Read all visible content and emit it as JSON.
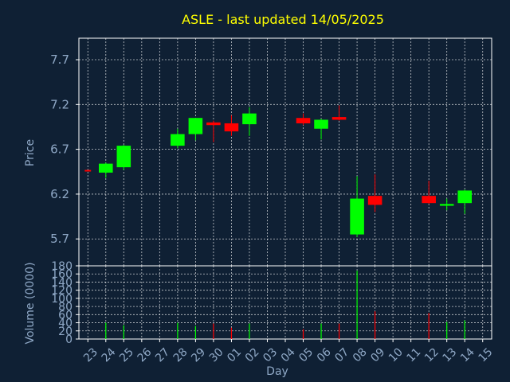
{
  "title": "ASLE - last updated 14/05/2025",
  "chart_data": [
    {
      "type": "candlestick",
      "ylabel": "Price",
      "xlabel": "",
      "ylim": [
        5.4,
        7.94
      ],
      "y_ticks": [
        "5.7",
        "6.2",
        "6.7",
        "7.2",
        "7.7"
      ],
      "grid": true,
      "colors": {
        "up": "#00ff00",
        "down": "#ff0000"
      },
      "categories": [
        "23",
        "24",
        "25",
        "26",
        "27",
        "28",
        "29",
        "30",
        "01",
        "02",
        "03",
        "04",
        "05",
        "06",
        "07",
        "08",
        "09",
        "10",
        "11",
        "12",
        "13",
        "14",
        "15"
      ],
      "candles": [
        {
          "day": "23",
          "open": 6.47,
          "high": 6.47,
          "low": 6.47,
          "close": 6.47,
          "dir": "down"
        },
        {
          "day": "24",
          "open": 6.44,
          "high": 6.55,
          "low": 6.38,
          "close": 6.54,
          "dir": "up"
        },
        {
          "day": "25",
          "open": 6.5,
          "high": 6.75,
          "low": 6.47,
          "close": 6.74,
          "dir": "up"
        },
        {
          "day": "28",
          "open": 6.74,
          "high": 6.93,
          "low": 6.71,
          "close": 6.87,
          "dir": "up"
        },
        {
          "day": "29",
          "open": 6.87,
          "high": 7.05,
          "low": 6.8,
          "close": 7.05,
          "dir": "up"
        },
        {
          "day": "30",
          "open": 7.0,
          "high": 7.02,
          "low": 6.78,
          "close": 6.97,
          "dir": "down"
        },
        {
          "day": "01",
          "open": 6.99,
          "high": 7.08,
          "low": 6.85,
          "close": 6.9,
          "dir": "down"
        },
        {
          "day": "02",
          "open": 6.98,
          "high": 7.17,
          "low": 6.85,
          "close": 7.1,
          "dir": "up"
        },
        {
          "day": "05",
          "open": 7.05,
          "high": 7.1,
          "low": 6.97,
          "close": 6.99,
          "dir": "down"
        },
        {
          "day": "06",
          "open": 6.93,
          "high": 7.04,
          "low": 6.81,
          "close": 7.03,
          "dir": "up"
        },
        {
          "day": "07",
          "open": 7.06,
          "high": 7.19,
          "low": 7.02,
          "close": 7.03,
          "dir": "down"
        },
        {
          "day": "08",
          "open": 5.75,
          "high": 6.4,
          "low": 5.72,
          "close": 6.15,
          "dir": "up"
        },
        {
          "day": "09",
          "open": 6.18,
          "high": 6.42,
          "low": 6.0,
          "close": 6.08,
          "dir": "down"
        },
        {
          "day": "12",
          "open": 6.18,
          "high": 6.35,
          "low": 6.09,
          "close": 6.1,
          "dir": "down"
        },
        {
          "day": "13",
          "open": 6.07,
          "high": 6.15,
          "low": 6.02,
          "close": 6.09,
          "dir": "up"
        },
        {
          "day": "14",
          "open": 6.1,
          "high": 6.25,
          "low": 5.98,
          "close": 6.24,
          "dir": "up"
        }
      ]
    },
    {
      "type": "bar",
      "ylabel": "Volume (0000)",
      "xlabel": "Day",
      "ylim": [
        0,
        180
      ],
      "y_ticks": [
        "0",
        "20",
        "40",
        "60",
        "80",
        "100",
        "120",
        "140",
        "160",
        "180"
      ],
      "grid": true,
      "categories": [
        "23",
        "24",
        "25",
        "26",
        "27",
        "28",
        "29",
        "30",
        "01",
        "02",
        "03",
        "04",
        "05",
        "06",
        "07",
        "08",
        "09",
        "10",
        "11",
        "12",
        "13",
        "14",
        "15"
      ],
      "bars": [
        {
          "day": "24",
          "value": 40,
          "dir": "up"
        },
        {
          "day": "25",
          "value": 34,
          "dir": "up"
        },
        {
          "day": "28",
          "value": 40,
          "dir": "up"
        },
        {
          "day": "29",
          "value": 32,
          "dir": "up"
        },
        {
          "day": "30",
          "value": 38,
          "dir": "down"
        },
        {
          "day": "01",
          "value": 28,
          "dir": "down"
        },
        {
          "day": "02",
          "value": 38,
          "dir": "up"
        },
        {
          "day": "05",
          "value": 24,
          "dir": "down"
        },
        {
          "day": "06",
          "value": 38,
          "dir": "up"
        },
        {
          "day": "07",
          "value": 38,
          "dir": "down"
        },
        {
          "day": "08",
          "value": 168,
          "dir": "up"
        },
        {
          "day": "09",
          "value": 68,
          "dir": "down"
        },
        {
          "day": "12",
          "value": 64,
          "dir": "down"
        },
        {
          "day": "13",
          "value": 42,
          "dir": "up"
        },
        {
          "day": "14",
          "value": 46,
          "dir": "up"
        }
      ]
    }
  ]
}
